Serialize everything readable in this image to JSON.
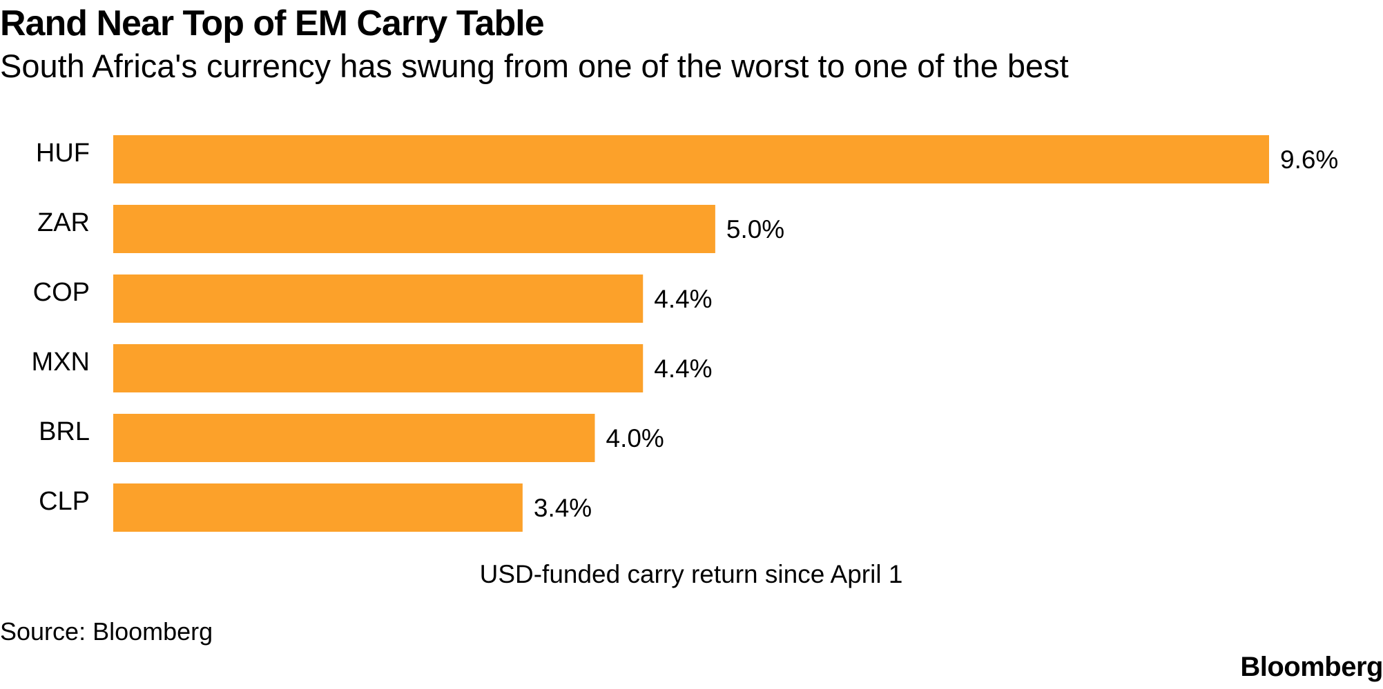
{
  "header": {
    "title": "Rand Near Top of EM Carry Table",
    "subtitle": "South Africa's currency has swung from one of the worst to one of the best"
  },
  "chart_data": {
    "type": "bar",
    "orientation": "horizontal",
    "title": "Rand Near Top of EM Carry Table",
    "subtitle": "South Africa's currency has swung from one of the worst to one of the best",
    "categories": [
      "HUF",
      "ZAR",
      "COP",
      "MXN",
      "BRL",
      "CLP"
    ],
    "values": [
      9.6,
      5.0,
      4.4,
      4.4,
      4.0,
      3.4
    ],
    "value_labels": [
      "9.6%",
      "5.0%",
      "4.4%",
      "4.4%",
      "4.0%",
      "3.4%"
    ],
    "xlabel": "USD-funded carry return since April 1",
    "ylabel": "",
    "xlim": [
      0,
      9.6
    ],
    "bar_color": "#fca12a",
    "grid": false,
    "legend": "none"
  },
  "footer": {
    "source": "Source: Bloomberg",
    "logo": "Bloomberg"
  }
}
